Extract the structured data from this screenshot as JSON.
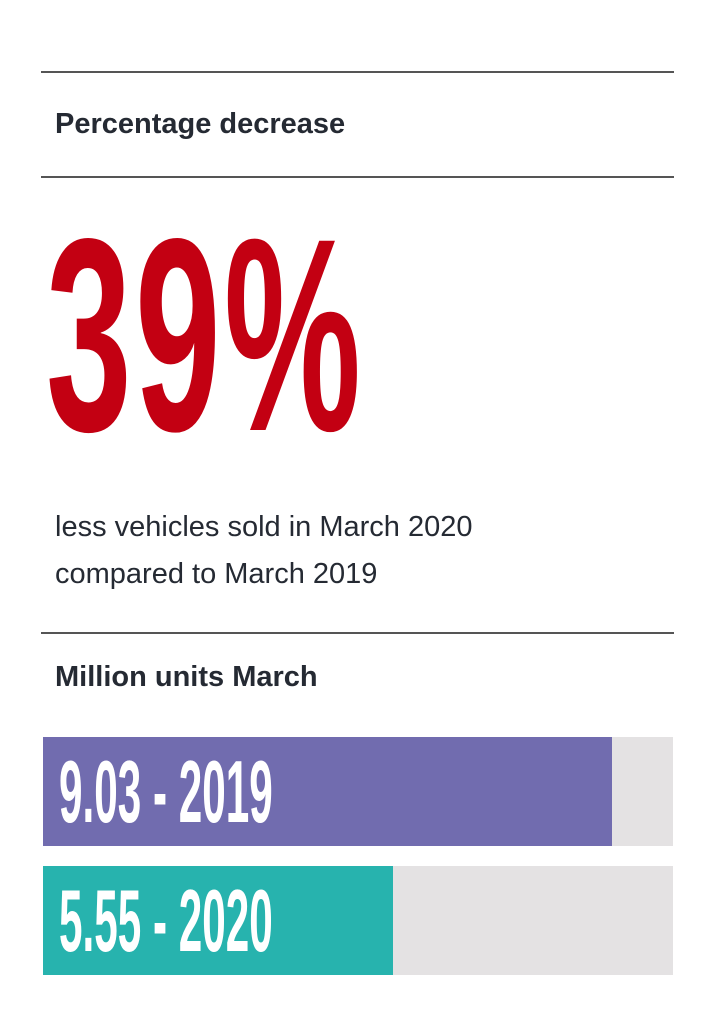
{
  "section1": {
    "title": "Percentage decrease"
  },
  "headline": {
    "value": "39%",
    "color": "#c30012"
  },
  "description": {
    "line1": "less vehicles sold in March 2020",
    "line2": "compared to March 2019"
  },
  "chart_data": {
    "type": "bar",
    "orientation": "horizontal",
    "title": "Million units March",
    "categories": [
      "2019",
      "2020"
    ],
    "values": [
      9.03,
      5.55
    ],
    "labels": [
      "9.03 - 2019",
      "5.55 - 2020"
    ],
    "colors": [
      "#716caf",
      "#27b3ae"
    ],
    "track_color": "#e4e2e3",
    "xlim": [
      0,
      10
    ]
  }
}
